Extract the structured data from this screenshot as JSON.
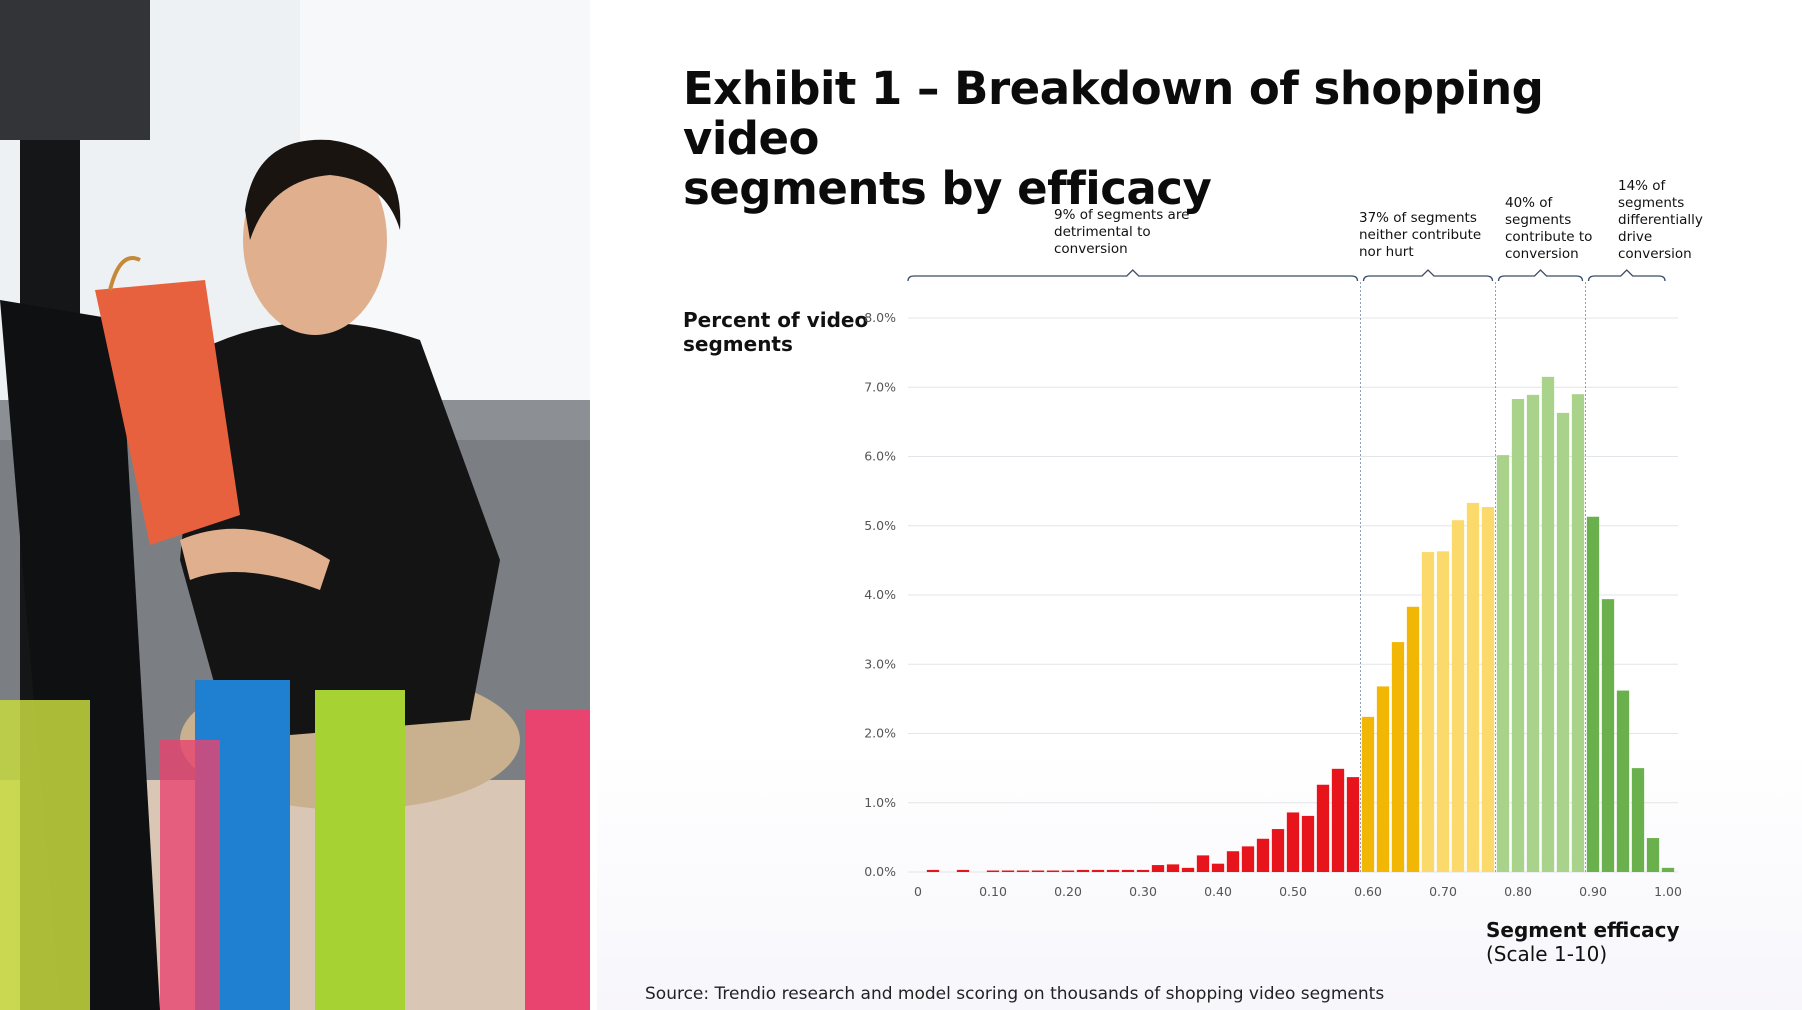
{
  "title_lines": [
    "Exhibit 1 – Breakdown of shopping video",
    "segments by efficacy"
  ],
  "source": "Source: Trendio research and model scoring on thousands of shopping video segments",
  "annotations": [
    {
      "lines": [
        "9% of segments are",
        "detrimental to",
        "conversion"
      ]
    },
    {
      "lines": [
        "37% of segments",
        "neither contribute",
        "nor hurt"
      ]
    },
    {
      "lines": [
        "40% of",
        "segments",
        "contribute to",
        "conversion"
      ]
    },
    {
      "lines": [
        "14% of",
        "segments",
        "differentially",
        "drive",
        "conversion"
      ]
    }
  ],
  "colors": {
    "detrimental": "#e8141b",
    "neutral_dark": "#f2b705",
    "neutral_light": "#fbd96a",
    "contribute": "#a9d38b",
    "drive": "#6ab04c",
    "brace": "#3b4d66",
    "grid": "#e2e5ea",
    "divider": "#8ea0b8"
  },
  "chart_data": {
    "type": "bar",
    "ylabel_lines": [
      "Percent of video",
      "segments"
    ],
    "xlabel_lines": [
      "Segment efficacy",
      "(Scale 1-10)"
    ],
    "xlim": [
      0,
      1.0
    ],
    "ylim": [
      0,
      8.0
    ],
    "y_ticks": [
      "0.0%",
      "1.0%",
      "2.0%",
      "3.0%",
      "4.0%",
      "5.0%",
      "6.0%",
      "7.0%",
      "8.0%"
    ],
    "x_ticks": [
      "0",
      "0.10",
      "0.20",
      "0.30",
      "0.40",
      "0.50",
      "0.60",
      "0.70",
      "0.80",
      "0.90",
      "1.00"
    ],
    "grid": true,
    "bin_width": 0.02,
    "bins": [
      {
        "x": 0.02,
        "value": 0.03,
        "group": "detrimental"
      },
      {
        "x": 0.06,
        "value": 0.03,
        "group": "detrimental"
      },
      {
        "x": 0.1,
        "value": 0.02,
        "group": "detrimental"
      },
      {
        "x": 0.12,
        "value": 0.02,
        "group": "detrimental"
      },
      {
        "x": 0.14,
        "value": 0.02,
        "group": "detrimental"
      },
      {
        "x": 0.16,
        "value": 0.02,
        "group": "detrimental"
      },
      {
        "x": 0.18,
        "value": 0.02,
        "group": "detrimental"
      },
      {
        "x": 0.2,
        "value": 0.02,
        "group": "detrimental"
      },
      {
        "x": 0.22,
        "value": 0.03,
        "group": "detrimental"
      },
      {
        "x": 0.24,
        "value": 0.03,
        "group": "detrimental"
      },
      {
        "x": 0.26,
        "value": 0.03,
        "group": "detrimental"
      },
      {
        "x": 0.28,
        "value": 0.03,
        "group": "detrimental"
      },
      {
        "x": 0.3,
        "value": 0.03,
        "group": "detrimental"
      },
      {
        "x": 0.32,
        "value": 0.1,
        "group": "detrimental"
      },
      {
        "x": 0.34,
        "value": 0.11,
        "group": "detrimental"
      },
      {
        "x": 0.36,
        "value": 0.06,
        "group": "detrimental"
      },
      {
        "x": 0.38,
        "value": 0.24,
        "group": "detrimental"
      },
      {
        "x": 0.4,
        "value": 0.12,
        "group": "detrimental"
      },
      {
        "x": 0.42,
        "value": 0.3,
        "group": "detrimental"
      },
      {
        "x": 0.44,
        "value": 0.37,
        "group": "detrimental"
      },
      {
        "x": 0.46,
        "value": 0.48,
        "group": "detrimental"
      },
      {
        "x": 0.48,
        "value": 0.62,
        "group": "detrimental"
      },
      {
        "x": 0.5,
        "value": 0.86,
        "group": "detrimental"
      },
      {
        "x": 0.52,
        "value": 0.81,
        "group": "detrimental"
      },
      {
        "x": 0.54,
        "value": 1.26,
        "group": "detrimental"
      },
      {
        "x": 0.56,
        "value": 1.49,
        "group": "detrimental"
      },
      {
        "x": 0.58,
        "value": 1.37,
        "group": "detrimental"
      },
      {
        "x": 0.6,
        "value": 2.24,
        "group": "neutral"
      },
      {
        "x": 0.62,
        "value": 2.68,
        "group": "neutral"
      },
      {
        "x": 0.64,
        "value": 3.32,
        "group": "neutral"
      },
      {
        "x": 0.66,
        "value": 3.83,
        "group": "neutral"
      },
      {
        "x": 0.68,
        "value": 4.62,
        "group": "neutral"
      },
      {
        "x": 0.7,
        "value": 4.63,
        "group": "neutral"
      },
      {
        "x": 0.72,
        "value": 5.08,
        "group": "neutral"
      },
      {
        "x": 0.74,
        "value": 5.33,
        "group": "neutral"
      },
      {
        "x": 0.76,
        "value": 5.27,
        "group": "neutral"
      },
      {
        "x": 0.78,
        "value": 6.02,
        "group": "contribute"
      },
      {
        "x": 0.8,
        "value": 6.83,
        "group": "contribute"
      },
      {
        "x": 0.82,
        "value": 6.89,
        "group": "contribute"
      },
      {
        "x": 0.84,
        "value": 7.15,
        "group": "contribute"
      },
      {
        "x": 0.86,
        "value": 6.63,
        "group": "contribute"
      },
      {
        "x": 0.88,
        "value": 6.9,
        "group": "contribute"
      },
      {
        "x": 0.9,
        "value": 5.13,
        "group": "drive"
      },
      {
        "x": 0.92,
        "value": 3.94,
        "group": "drive"
      },
      {
        "x": 0.94,
        "value": 2.62,
        "group": "drive"
      },
      {
        "x": 0.96,
        "value": 1.5,
        "group": "drive"
      },
      {
        "x": 0.98,
        "value": 0.49,
        "group": "drive"
      },
      {
        "x": 1.0,
        "value": 0.06,
        "group": "drive"
      }
    ],
    "segments": [
      {
        "label": "9% of segments are detrimental to conversion",
        "share": "9%",
        "from": 0.0,
        "to": 0.59
      },
      {
        "label": "37% of segments neither contribute nor hurt",
        "share": "37%",
        "from": 0.59,
        "to": 0.77
      },
      {
        "label": "40% of segments contribute to conversion",
        "share": "40%",
        "from": 0.77,
        "to": 0.89
      },
      {
        "label": "14% of segments differentially drive conversion",
        "share": "14%",
        "from": 0.89,
        "to": 1.0
      }
    ]
  }
}
